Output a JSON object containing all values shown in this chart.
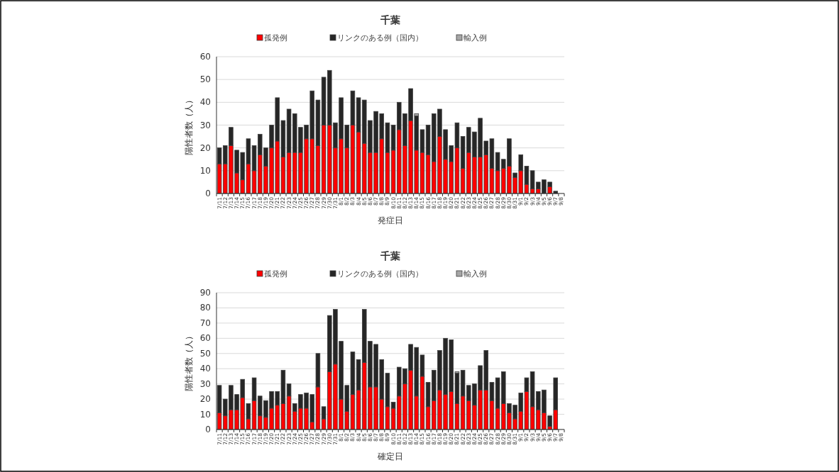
{
  "chart_data": [
    {
      "type": "bar",
      "stacked": true,
      "title": "千葉",
      "xlabel": "発症日",
      "ylabel": "陽性者数（人）",
      "ylim": [
        0,
        60
      ],
      "yticks": [
        0,
        10,
        20,
        30,
        40,
        50,
        60
      ],
      "grid": "y",
      "legend": "top",
      "categories": [
        "7/11",
        "7/12",
        "7/13",
        "7/14",
        "7/15",
        "7/16",
        "7/17",
        "7/18",
        "7/19",
        "7/20",
        "7/21",
        "7/22",
        "7/23",
        "7/24",
        "7/25",
        "7/26",
        "7/27",
        "7/28",
        "7/29",
        "7/30",
        "7/31",
        "8/1",
        "8/2",
        "8/3",
        "8/4",
        "8/5",
        "8/6",
        "8/7",
        "8/8",
        "8/9",
        "8/10",
        "8/11",
        "8/12",
        "8/13",
        "8/14",
        "8/15",
        "8/16",
        "8/17",
        "8/18",
        "8/19",
        "8/20",
        "8/21",
        "8/22",
        "8/23",
        "8/24",
        "8/25",
        "8/26",
        "8/27",
        "8/28",
        "8/29",
        "8/30",
        "8/31",
        "9/1",
        "9/2",
        "9/3",
        "9/4",
        "9/5",
        "9/6",
        "9/7",
        "9/8"
      ],
      "series": [
        {
          "name": "孤発例",
          "color": "#ff0000",
          "values": [
            13,
            13,
            21,
            9,
            6,
            13,
            10,
            17,
            12,
            20,
            23,
            16,
            18,
            18,
            18,
            24,
            24,
            21,
            30,
            30,
            20,
            24,
            20,
            30,
            27,
            22,
            18,
            18,
            24,
            18,
            19,
            28,
            21,
            32,
            19,
            18,
            17,
            14,
            25,
            15,
            14,
            20,
            11,
            18,
            16,
            16,
            17,
            11,
            10,
            11,
            12,
            7,
            10,
            4,
            2,
            2,
            0,
            3,
            0,
            0
          ]
        },
        {
          "name": "リンクのある例（国内）",
          "color": "#262626",
          "values": [
            7,
            8,
            8,
            10,
            12,
            11,
            11,
            9,
            8,
            10,
            19,
            16,
            19,
            17,
            11,
            6,
            21,
            20,
            21,
            24,
            11,
            18,
            10,
            15,
            15,
            19,
            14,
            18,
            11,
            13,
            11,
            12,
            14,
            14,
            15,
            10,
            13,
            21,
            12,
            13,
            7,
            11,
            14,
            11,
            11,
            17,
            6,
            13,
            8,
            4,
            12,
            2,
            7,
            8,
            8,
            3,
            6,
            2,
            1,
            0
          ]
        },
        {
          "name": "輸入例",
          "color": "#a6a6a6",
          "values": [
            0,
            0,
            0,
            0,
            0,
            0,
            0,
            0,
            0,
            0,
            0,
            0,
            0,
            0,
            0,
            0,
            0,
            0,
            0,
            0,
            0,
            0,
            0,
            0,
            0,
            0,
            0,
            0,
            0,
            0,
            0,
            0,
            0,
            0,
            1,
            0,
            0,
            0,
            0,
            0,
            0,
            0,
            0,
            0,
            0,
            0,
            0,
            0,
            0,
            0,
            0,
            0,
            0,
            0,
            0,
            0,
            0,
            0,
            0,
            0
          ]
        }
      ]
    },
    {
      "type": "bar",
      "stacked": true,
      "title": "千葉",
      "xlabel": "確定日",
      "ylabel": "陽性者数（人）",
      "ylim": [
        0,
        90
      ],
      "yticks": [
        0,
        10,
        20,
        30,
        40,
        50,
        60,
        70,
        80,
        90
      ],
      "grid": "y",
      "legend": "top",
      "categories": [
        "7/11",
        "7/12",
        "7/13",
        "7/14",
        "7/15",
        "7/16",
        "7/17",
        "7/18",
        "7/19",
        "7/20",
        "7/21",
        "7/22",
        "7/23",
        "7/24",
        "7/25",
        "7/26",
        "7/27",
        "7/28",
        "7/29",
        "7/30",
        "7/31",
        "8/1",
        "8/2",
        "8/3",
        "8/4",
        "8/5",
        "8/6",
        "8/7",
        "8/8",
        "8/9",
        "8/10",
        "8/11",
        "8/12",
        "8/13",
        "8/14",
        "8/15",
        "8/16",
        "8/17",
        "8/18",
        "8/19",
        "8/20",
        "8/21",
        "8/22",
        "8/23",
        "8/24",
        "8/25",
        "8/26",
        "8/27",
        "8/28",
        "8/29",
        "8/30",
        "8/31",
        "9/1",
        "9/2",
        "9/3",
        "9/4",
        "9/5",
        "9/6",
        "9/7",
        "9/8"
      ],
      "series": [
        {
          "name": "孤発例",
          "color": "#ff0000",
          "values": [
            11,
            9,
            13,
            13,
            21,
            7,
            19,
            9,
            8,
            14,
            16,
            17,
            22,
            12,
            14,
            14,
            5,
            28,
            7,
            38,
            43,
            20,
            12,
            23,
            26,
            44,
            28,
            28,
            20,
            15,
            14,
            22,
            30,
            39,
            22,
            35,
            15,
            19,
            26,
            23,
            25,
            17,
            22,
            19,
            16,
            26,
            26,
            19,
            14,
            17,
            11,
            7,
            12,
            25,
            15,
            13,
            11,
            2,
            13,
            0
          ]
        },
        {
          "name": "リンクのある例（国内）",
          "color": "#262626",
          "values": [
            18,
            11,
            16,
            10,
            12,
            10,
            15,
            13,
            11,
            11,
            9,
            22,
            8,
            5,
            9,
            10,
            18,
            22,
            8,
            37,
            36,
            38,
            17,
            28,
            20,
            35,
            30,
            28,
            26,
            22,
            4,
            19,
            10,
            17,
            32,
            14,
            16,
            20,
            26,
            37,
            34,
            20,
            17,
            10,
            14,
            16,
            26,
            12,
            20,
            21,
            6,
            9,
            12,
            9,
            23,
            12,
            15,
            7,
            21,
            0
          ]
        },
        {
          "name": "輸入例",
          "color": "#a6a6a6",
          "values": [
            0,
            0,
            0,
            0,
            0,
            0,
            0,
            0,
            0,
            0,
            0,
            0,
            0,
            0,
            0,
            0,
            0,
            0,
            0,
            0,
            0,
            0,
            0,
            0,
            0,
            0,
            0,
            0,
            0,
            0,
            0,
            0,
            0,
            0,
            0,
            0,
            0,
            0,
            0,
            0,
            0,
            1,
            0,
            0,
            0,
            0,
            0,
            0,
            0,
            0,
            0,
            0,
            0,
            0,
            0,
            0,
            0,
            0,
            0,
            0
          ]
        }
      ]
    }
  ]
}
